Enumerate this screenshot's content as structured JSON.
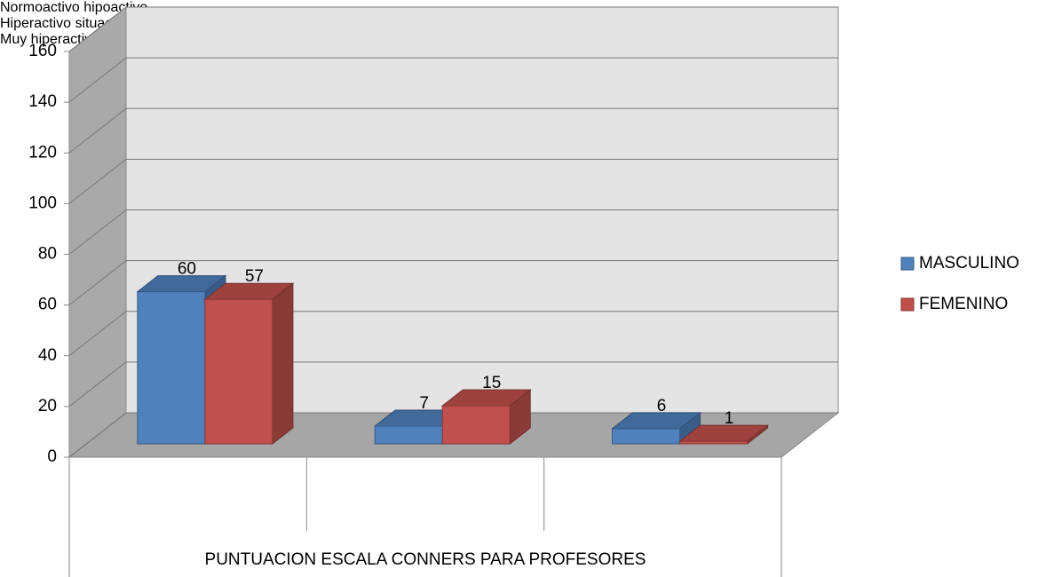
{
  "chart_data": {
    "type": "bar3d",
    "categories": [
      "Normoactivo\nhipoactivo",
      "Hiperactivo situacional",
      "Muy hiperactivo\nDisruptivo"
    ],
    "xlabel": "PUNTUACION ESCALA CONNERS PARA PROFESORES",
    "series": [
      {
        "name": "MASCULINO",
        "color": "#4f81bd",
        "values": [
          60,
          7,
          6
        ]
      },
      {
        "name": "FEMENINO",
        "color": "#c0504d",
        "values": [
          57,
          15,
          1
        ]
      }
    ],
    "ylim": [
      0,
      160
    ],
    "yticks": [
      0,
      20,
      40,
      60,
      80,
      100,
      120,
      140,
      160
    ],
    "grid": true,
    "legend": "right"
  }
}
